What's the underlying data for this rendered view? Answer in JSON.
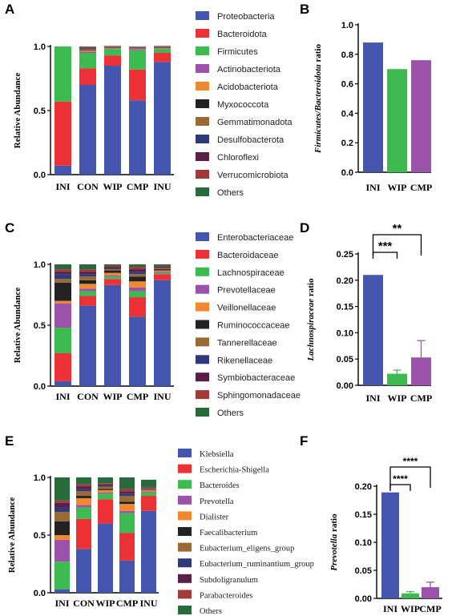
{
  "figure": {
    "panels": {
      "A": "A",
      "B": "B",
      "C": "C",
      "D": "D",
      "E": "E",
      "F": "F"
    }
  },
  "chart_data": [
    {
      "id": "A",
      "type": "bar",
      "stacked": true,
      "ylabel": "Relative Abundance",
      "ylim": [
        0,
        1.0
      ],
      "yticks": [
        "0.0",
        "0.5",
        "1.0"
      ],
      "categories": [
        "INI",
        "CON",
        "WIP",
        "CMP",
        "INU"
      ],
      "series": [
        {
          "name": "Proteobacteria",
          "color": "#4355ad",
          "values": [
            0.07,
            0.7,
            0.85,
            0.58,
            0.88
          ]
        },
        {
          "name": "Bacteroidota",
          "color": "#ec3237",
          "values": [
            0.5,
            0.13,
            0.08,
            0.24,
            0.07
          ]
        },
        {
          "name": "Firmicutes",
          "color": "#3dbb50",
          "values": [
            0.43,
            0.12,
            0.05,
            0.15,
            0.03
          ]
        },
        {
          "name": "Actinobacteriota",
          "color": "#9a53a9",
          "values": [
            0,
            0.01,
            0.005,
            0.01,
            0.005
          ]
        },
        {
          "name": "Acidobacteriota",
          "color": "#f0882f",
          "values": [
            0,
            0.01,
            0.005,
            0.005,
            0.005
          ]
        },
        {
          "name": "Myxococcota",
          "color": "#222222",
          "values": [
            0,
            0.005,
            0.005,
            0.005,
            0.005
          ]
        },
        {
          "name": "Gemmatimonadota",
          "color": "#9a6a36",
          "values": [
            0,
            0.005,
            0.002,
            0.002,
            0.002
          ]
        },
        {
          "name": "Desulfobacterota",
          "color": "#2f3b78",
          "values": [
            0,
            0.005,
            0.002,
            0.002,
            0.002
          ]
        },
        {
          "name": "Chloroflexi",
          "color": "#5a1f48",
          "values": [
            0,
            0.005,
            0.002,
            0.002,
            0.002
          ]
        },
        {
          "name": "Verrucomicrobiota",
          "color": "#a33a3a",
          "values": [
            0,
            0.005,
            0.002,
            0.002,
            0.002
          ]
        },
        {
          "name": "Others",
          "color": "#276b3c",
          "values": [
            0,
            0.005,
            0.002,
            0.002,
            0.002
          ]
        }
      ]
    },
    {
      "id": "B",
      "type": "bar",
      "ylabel_italic": "Firmicutes/Bacteroidota",
      "ylabel_rest": " ratio",
      "ylim": [
        0,
        1.0
      ],
      "yticks": [
        "0.0",
        "0.2",
        "0.4",
        "0.6",
        "0.8",
        "1.0"
      ],
      "categories": [
        "INI",
        "WIP",
        "CMP"
      ],
      "values": [
        0.88,
        0.7,
        0.76
      ],
      "colors": [
        "#4355ad",
        "#3dbb50",
        "#9a53a9"
      ]
    },
    {
      "id": "C",
      "type": "bar",
      "stacked": true,
      "ylabel": "Relative Abundance",
      "ylim": [
        0,
        1.0
      ],
      "yticks": [
        "0.0",
        "0.5",
        "1.0"
      ],
      "categories": [
        "INI",
        "CON",
        "WIP",
        "CMP",
        "INU"
      ],
      "series": [
        {
          "name": "Enterobacteriaceae",
          "color": "#4355ad",
          "values": [
            0.04,
            0.66,
            0.83,
            0.57,
            0.87
          ]
        },
        {
          "name": "Bacteroidaceae",
          "color": "#ec3237",
          "values": [
            0.23,
            0.08,
            0.05,
            0.16,
            0.05
          ]
        },
        {
          "name": "Lachnospiraceae",
          "color": "#3dbb50",
          "values": [
            0.21,
            0.04,
            0.02,
            0.05,
            0.01
          ]
        },
        {
          "name": "Prevotellaceae",
          "color": "#9a53a9",
          "values": [
            0.2,
            0.02,
            0.01,
            0.03,
            0.01
          ]
        },
        {
          "name": "Veillonellaceae",
          "color": "#f0882f",
          "values": [
            0.02,
            0.04,
            0.02,
            0.05,
            0.01
          ]
        },
        {
          "name": "Ruminococcaceae",
          "color": "#222222",
          "values": [
            0.15,
            0.03,
            0.02,
            0.04,
            0.01
          ]
        },
        {
          "name": "Tannerellaceae",
          "color": "#9a6a36",
          "values": [
            0.03,
            0.03,
            0.01,
            0.02,
            0.01
          ]
        },
        {
          "name": "Rikenellaceae",
          "color": "#2f3b78",
          "values": [
            0.04,
            0.02,
            0.01,
            0.02,
            0.01
          ]
        },
        {
          "name": "Symbiobacteraceae",
          "color": "#5a1f48",
          "values": [
            0.02,
            0.02,
            0.01,
            0.02,
            0.005
          ]
        },
        {
          "name": "Sphingomonadaceae",
          "color": "#a33a3a",
          "values": [
            0.02,
            0.02,
            0.01,
            0.02,
            0.005
          ]
        },
        {
          "name": "Others",
          "color": "#276b3c",
          "values": [
            0.04,
            0.04,
            0.01,
            0.02,
            0.01
          ]
        }
      ]
    },
    {
      "id": "D",
      "type": "bar",
      "ylabel_italic": "Lachnospiraceae",
      "ylabel_rest": " ratio",
      "ylim": [
        0,
        0.25
      ],
      "yticks": [
        "0.00",
        "0.05",
        "0.10",
        "0.15",
        "0.20",
        "0.25"
      ],
      "categories": [
        "INI",
        "WIP",
        "CMP"
      ],
      "values": [
        0.21,
        0.022,
        0.053
      ],
      "errors": [
        0,
        0.007,
        0.032
      ],
      "colors": [
        "#4355ad",
        "#3dbb50",
        "#9a53a9"
      ],
      "significance": [
        {
          "from": "INI",
          "to": "WIP",
          "label": "***"
        },
        {
          "from": "INI",
          "to": "CMP",
          "label": "**"
        }
      ]
    },
    {
      "id": "E",
      "type": "bar",
      "stacked": true,
      "ylabel": "Relative Abundance",
      "ylim": [
        0,
        1.0
      ],
      "yticks": [
        "0.0",
        "0.5",
        "1.0"
      ],
      "categories": [
        "INI",
        "CON",
        "WIP",
        "CMP",
        "INU"
      ],
      "series": [
        {
          "name": "Klebsiella",
          "color": "#4355ad",
          "values": [
            0.03,
            0.38,
            0.6,
            0.28,
            0.71
          ]
        },
        {
          "name": "Escherichia-Shigella",
          "color": "#ec3237",
          "values": [
            0,
            0.26,
            0.21,
            0.24,
            0.13
          ]
        },
        {
          "name": "Bacteroides",
          "color": "#3dbb50",
          "values": [
            0.24,
            0.1,
            0.05,
            0.17,
            0.03
          ]
        },
        {
          "name": "Prevotella",
          "color": "#9a53a9",
          "values": [
            0.19,
            0.02,
            0.01,
            0.02,
            0.01
          ]
        },
        {
          "name": "Dialister",
          "color": "#f0882f",
          "values": [
            0.04,
            0.06,
            0.02,
            0.06,
            0.01
          ]
        },
        {
          "name": "Faecalibacterium",
          "color": "#222222",
          "values": [
            0.12,
            0.02,
            0.01,
            0.02,
            0.005
          ]
        },
        {
          "name": "Eubacterium_eligens_group",
          "color": "#9a6a36",
          "values": [
            0.08,
            0.04,
            0.02,
            0.05,
            0.01
          ]
        },
        {
          "name": "Eubacterium_ruminantium_group",
          "color": "#2f3b78",
          "values": [
            0.04,
            0.02,
            0.01,
            0.02,
            0.005
          ]
        },
        {
          "name": "Subdoligranulum",
          "color": "#5a1f48",
          "values": [
            0.04,
            0.02,
            0.01,
            0.02,
            0.005
          ]
        },
        {
          "name": "Parabacteroides",
          "color": "#a33a3a",
          "values": [
            0.02,
            0.02,
            0.01,
            0.02,
            0.005
          ]
        },
        {
          "name": "Others",
          "color": "#276b3c",
          "values": [
            0.2,
            0.06,
            0.05,
            0.1,
            0.06
          ]
        }
      ]
    },
    {
      "id": "F",
      "type": "bar",
      "ylabel_italic": "Prevotella",
      "ylabel_rest": " ratio",
      "ylim": [
        0,
        0.2
      ],
      "yticks": [
        "0.00",
        "0.05",
        "0.10",
        "0.15",
        "0.20"
      ],
      "categories": [
        "INI",
        "WIP",
        "CMP"
      ],
      "values": [
        0.189,
        0.009,
        0.02
      ],
      "errors": [
        0,
        0.003,
        0.009
      ],
      "colors": [
        "#4355ad",
        "#3dbb50",
        "#9a53a9"
      ],
      "significance": [
        {
          "from": "INI",
          "to": "WIP",
          "label": "****"
        },
        {
          "from": "INI",
          "to": "CMP",
          "label": "****"
        }
      ]
    }
  ]
}
